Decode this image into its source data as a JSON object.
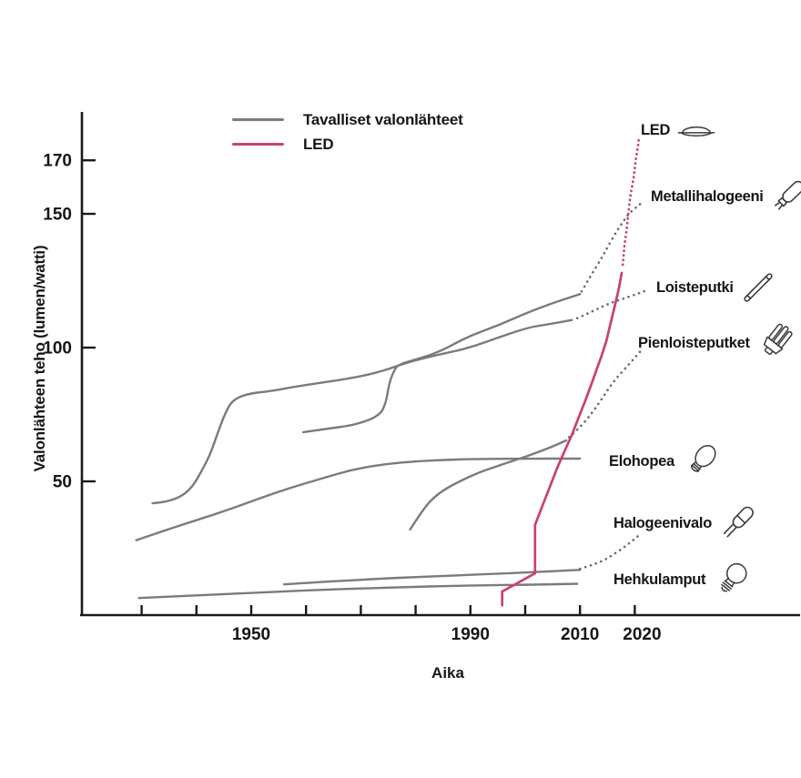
{
  "page": {
    "background": "#ffffff"
  },
  "chart_data": {
    "type": "line",
    "title": "",
    "xlabel": "Aika",
    "ylabel": "Valonlähteen teho (lumen/watti)",
    "xlim": [
      1919,
      2024
    ],
    "ylim": [
      0,
      188
    ],
    "x_ticks": [
      1930,
      1940,
      1950,
      1960,
      1970,
      1980,
      1990,
      2000,
      2010,
      2020
    ],
    "x_labeled_ticks": [
      1950,
      1990,
      2010,
      2020
    ],
    "y_ticks": [
      50,
      100,
      150,
      170
    ],
    "grid": false,
    "legend_position": "top-left-inside",
    "colors": {
      "ordinary": "#7b7b7b",
      "led": "#c9426b",
      "projected_ordinary": "#6a6a6a",
      "axis": "#1a1a1a",
      "text": "#161616"
    },
    "legend": [
      {
        "key": "ordinary",
        "label": "Tavalliset valonlähteet"
      },
      {
        "key": "led",
        "label": "LED"
      }
    ],
    "series": [
      {
        "label": "Hehkulamput",
        "group": "ordinary",
        "smooth": true,
        "solid": [
          [
            1929.5,
            6.4
          ],
          [
            1945,
            7.8
          ],
          [
            1960,
            9.3
          ],
          [
            1975,
            10.3
          ],
          [
            1990,
            11.1
          ],
          [
            2002,
            11.4
          ],
          [
            2009.5,
            11.7
          ]
        ],
        "projected": []
      },
      {
        "label": "Halogeenivalo",
        "group": "ordinary",
        "smooth": true,
        "solid": [
          [
            1956,
            11.5
          ],
          [
            1970,
            13.3
          ],
          [
            1984,
            14.6
          ],
          [
            1997,
            15.6
          ],
          [
            2010,
            16.9
          ]
        ],
        "projected": [
          [
            2010,
            17.3
          ],
          [
            2013.5,
            19.5
          ],
          [
            2016,
            22.5
          ],
          [
            2018.5,
            26
          ],
          [
            2020.8,
            29.9
          ]
        ]
      },
      {
        "label": "Elohopea",
        "group": "ordinary",
        "smooth": true,
        "solid": [
          [
            1929,
            28
          ],
          [
            1934,
            31.5
          ],
          [
            1940,
            35.5
          ],
          [
            1946,
            39.5
          ],
          [
            1952,
            44
          ],
          [
            1957,
            47.5
          ],
          [
            1962,
            50.5
          ],
          [
            1966,
            53
          ],
          [
            1970,
            55
          ],
          [
            1975,
            56.6
          ],
          [
            1980,
            57.5
          ],
          [
            1986,
            58.1
          ],
          [
            1992,
            58.4
          ],
          [
            2000,
            58.5
          ],
          [
            2010,
            58.5
          ]
        ],
        "projected": []
      },
      {
        "label": "Pienloisteputket",
        "group": "ordinary",
        "smooth": true,
        "solid": [
          [
            1979,
            32
          ],
          [
            1981,
            38.4
          ],
          [
            1983,
            43.5
          ],
          [
            1985.5,
            47.3
          ],
          [
            1989,
            51
          ],
          [
            1992,
            53.7
          ],
          [
            1996.5,
            56.8
          ],
          [
            2000.5,
            59.5
          ],
          [
            2004.5,
            62.6
          ],
          [
            2007.5,
            65.3
          ]
        ],
        "projected": [
          [
            2008,
            66.5
          ],
          [
            2010.5,
            71
          ],
          [
            2013.5,
            79.3
          ],
          [
            2016,
            87.1
          ],
          [
            2019,
            93.9
          ],
          [
            2021.5,
            99.7
          ]
        ]
      },
      {
        "label": "Loisteputki",
        "group": "ordinary",
        "smooth": true,
        "solid": [
          [
            1932,
            41.8
          ],
          [
            1934.5,
            42.2
          ],
          [
            1937.5,
            44.6
          ],
          [
            1939.5,
            48.6
          ],
          [
            1941,
            54.1
          ],
          [
            1942.5,
            59.9
          ],
          [
            1943.5,
            66
          ],
          [
            1945.5,
            76.9
          ],
          [
            1947,
            81
          ],
          [
            1950,
            83
          ],
          [
            1953.5,
            83.7
          ],
          [
            1958,
            85.4
          ],
          [
            1963.5,
            87.1
          ],
          [
            1969,
            88.8
          ],
          [
            1974,
            91.2
          ],
          [
            1978.5,
            94.5
          ],
          [
            1984,
            97.3
          ],
          [
            1989.5,
            99.7
          ],
          [
            1995,
            103.7
          ],
          [
            2000.5,
            107.5
          ],
          [
            2004.5,
            108.8
          ],
          [
            2008.5,
            110.3
          ]
        ],
        "projected": [
          [
            2009.5,
            111
          ],
          [
            2012,
            113.3
          ],
          [
            2015.5,
            116.7
          ],
          [
            2019,
            119
          ],
          [
            2021.8,
            121.1
          ]
        ]
      },
      {
        "label": "Metallihalogeeni",
        "group": "ordinary",
        "smooth": true,
        "solid": [
          [
            1959.5,
            68.4
          ],
          [
            1964,
            69.7
          ],
          [
            1969,
            71.1
          ],
          [
            1973.4,
            74.5
          ],
          [
            1974.6,
            79.3
          ],
          [
            1975.2,
            87.1
          ],
          [
            1976.4,
            92.9
          ],
          [
            1977.5,
            94
          ],
          [
            1978.4,
            94.6
          ],
          [
            1984,
            98
          ],
          [
            1989.5,
            104.1
          ],
          [
            1995,
            108.2
          ],
          [
            2000.5,
            113.2
          ],
          [
            2005.5,
            117
          ],
          [
            2010,
            120
          ]
        ],
        "projected": [
          [
            2010.3,
            121
          ],
          [
            2012,
            127
          ],
          [
            2013.8,
            133
          ],
          [
            2015,
            137.4
          ],
          [
            2016.4,
            142.5
          ],
          [
            2017.8,
            146.9
          ],
          [
            2019,
            150.3
          ],
          [
            2020.4,
            152.7
          ],
          [
            2021.5,
            154.5
          ]
        ]
      },
      {
        "label": "LED",
        "group": "led",
        "smooth": false,
        "solid": [
          [
            1995.8,
            3.7
          ],
          [
            1995.8,
            8.8
          ],
          [
            2001.8,
            15.6
          ],
          [
            2001.8,
            33.7
          ],
          [
            2003.2,
            41.2
          ],
          [
            2004.5,
            48
          ],
          [
            2005.8,
            54.8
          ],
          [
            2007.1,
            60.9
          ],
          [
            2008.5,
            67.3
          ],
          [
            2009.8,
            74.1
          ],
          [
            2011,
            80.3
          ],
          [
            2012.1,
            86.4
          ],
          [
            2013.1,
            92.2
          ],
          [
            2014,
            97.3
          ],
          [
            2014.8,
            102.4
          ],
          [
            2015.6,
            109.2
          ],
          [
            2016.4,
            116
          ],
          [
            2017.1,
            122.1
          ],
          [
            2017.6,
            127.9
          ]
        ],
        "projected": [
          [
            2017.8,
            131
          ],
          [
            2018.1,
            138.1
          ],
          [
            2018.5,
            143.9
          ],
          [
            2018.8,
            150
          ],
          [
            2019.2,
            156.8
          ],
          [
            2019.8,
            163.6
          ],
          [
            2020.2,
            170.4
          ],
          [
            2020.6,
            175.5
          ],
          [
            2020.8,
            178.9
          ]
        ]
      }
    ]
  }
}
